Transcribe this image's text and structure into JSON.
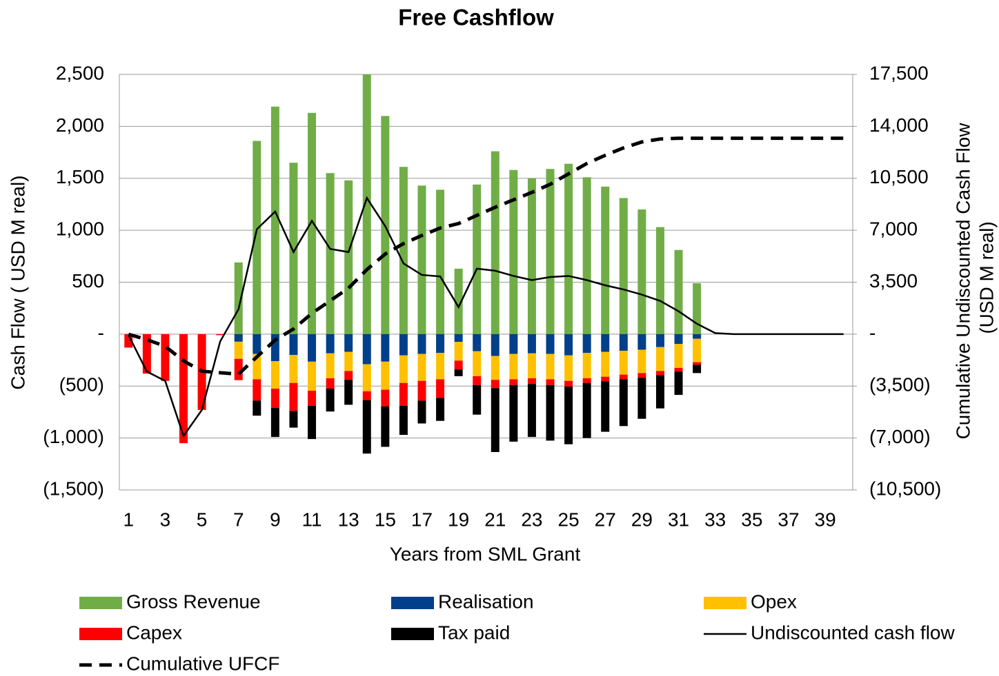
{
  "chart_data": {
    "type": "bar",
    "title": "Free Cashflow",
    "xlabel": "Years from SML Grant",
    "ylabel": "Cash Flow ( USD M real)",
    "y2label": [
      "Cumulative Undiscounted Cash Flow",
      "(USD M real)"
    ],
    "categories": [
      1,
      null,
      3,
      null,
      5,
      null,
      7,
      null,
      9,
      null,
      11,
      null,
      13,
      null,
      15,
      null,
      17,
      null,
      19,
      null,
      21,
      null,
      23,
      null,
      25,
      null,
      27,
      null,
      29,
      null,
      31,
      null,
      33,
      null,
      35,
      null,
      37,
      null,
      39,
      null
    ],
    "ylim": [
      -1500,
      2500
    ],
    "yticks": [
      -1500,
      -1000,
      -500,
      0,
      500,
      1000,
      1500,
      2000,
      2500
    ],
    "yticks_printed": [
      {
        "value": -1500,
        "label": "(1,500)"
      },
      {
        "value": -1000,
        "label": "(1,000)"
      },
      {
        "value": -500,
        "label": "(500)"
      },
      {
        "value": 0,
        "label": "-"
      },
      500,
      {
        "value": 1000,
        "label": "1,000"
      },
      {
        "value": 1500,
        "label": "1,500"
      },
      {
        "value": 2000,
        "label": "2,000"
      },
      {
        "value": 2500,
        "label": "2,500"
      }
    ],
    "y2lim": [
      -10500,
      17500
    ],
    "y2ticks": [
      {
        "value": -10500,
        "label": "(10,500)"
      },
      {
        "value": -7000,
        "label": "(7,000)"
      },
      {
        "value": -3500,
        "label": "(3,500)"
      },
      {
        "value": 0,
        "label": "-"
      },
      {
        "value": 3500,
        "label": "3,500"
      },
      {
        "value": 7000,
        "label": "7,000"
      },
      {
        "value": 10500,
        "label": "10,500"
      },
      {
        "value": 14000,
        "label": "14,000"
      },
      {
        "value": 17500,
        "label": "17,500"
      }
    ],
    "grid": true,
    "negative_tick_color": "#ff0000",
    "series": [
      {
        "name": "Gross Revenue",
        "color": "#70ad47",
        "kind": "bar",
        "values": [
          0,
          0,
          0,
          0,
          0,
          0,
          690,
          1860,
          2190,
          1650,
          2130,
          1550,
          1480,
          2500,
          2100,
          1610,
          1430,
          1390,
          630,
          1440,
          1760,
          1580,
          1500,
          1590,
          1640,
          1510,
          1420,
          1310,
          1200,
          1030,
          810,
          490,
          0,
          0,
          0,
          0,
          0,
          0,
          0,
          0
        ]
      },
      {
        "name": "Realisation",
        "color": "#003f8a",
        "kind": "bar",
        "values": [
          0,
          0,
          0,
          0,
          0,
          0,
          -73,
          -190,
          -260,
          -200,
          -265,
          -185,
          -170,
          -290,
          -265,
          -205,
          -190,
          -180,
          -75,
          -165,
          -210,
          -190,
          -185,
          -190,
          -205,
          -180,
          -170,
          -160,
          -150,
          -125,
          -95,
          -45,
          0,
          0,
          0,
          0,
          0,
          0,
          0,
          0
        ]
      },
      {
        "name": "Opex",
        "color": "#ffc000",
        "kind": "bar",
        "values": [
          0,
          0,
          0,
          0,
          0,
          0,
          -165,
          -245,
          -265,
          -270,
          -280,
          -240,
          -185,
          -260,
          -270,
          -265,
          -260,
          -255,
          -180,
          -240,
          -230,
          -245,
          -240,
          -245,
          -245,
          -245,
          -240,
          -230,
          -225,
          -230,
          -230,
          -225,
          0,
          0,
          0,
          0,
          0,
          0,
          0,
          0
        ]
      },
      {
        "name": "Capex",
        "color": "#ff0000",
        "kind": "bar",
        "values": [
          -130,
          -380,
          -450,
          -1050,
          -730,
          -10,
          -205,
          -205,
          -185,
          -270,
          -145,
          -100,
          -85,
          -85,
          -160,
          -220,
          -190,
          -180,
          -85,
          -85,
          -80,
          -55,
          -55,
          -55,
          -55,
          -45,
          -45,
          -45,
          -45,
          -40,
          -35,
          -25,
          0,
          0,
          0,
          0,
          0,
          0,
          0,
          0
        ]
      },
      {
        "name": "Tax paid",
        "color": "#000000",
        "kind": "bar",
        "values": [
          0,
          0,
          0,
          0,
          0,
          0,
          0,
          -145,
          -280,
          -160,
          -320,
          -220,
          -240,
          -515,
          -390,
          -280,
          -220,
          -220,
          -65,
          -285,
          -615,
          -545,
          -510,
          -535,
          -555,
          -530,
          -485,
          -450,
          -395,
          -320,
          -225,
          -80,
          0,
          0,
          0,
          0,
          0,
          0,
          0,
          0
        ]
      },
      {
        "name": "Undiscounted cash flow",
        "color": "#000000",
        "kind": "line",
        "values": [
          -10,
          -360,
          -450,
          -980,
          -730,
          -70,
          240,
          1010,
          1180,
          790,
          1090,
          820,
          790,
          1310,
          1040,
          680,
          570,
          555,
          260,
          630,
          610,
          560,
          520,
          550,
          560,
          520,
          470,
          430,
          380,
          320,
          220,
          100,
          10,
          0,
          0,
          0,
          0,
          0,
          0,
          0
        ]
      },
      {
        "name": "Cumulative UFCF",
        "color": "#000000",
        "kind": "line",
        "dash": true,
        "axis": "y2",
        "values": [
          -10,
          -370,
          -820,
          -1800,
          -2500,
          -2600,
          -2700,
          -1530,
          -400,
          350,
          1400,
          2250,
          3100,
          4350,
          5400,
          6100,
          6650,
          7150,
          7450,
          8000,
          8550,
          9050,
          9550,
          10100,
          10800,
          11500,
          12050,
          12550,
          12950,
          13150,
          13200,
          13200,
          13200,
          13200,
          13200,
          13200,
          13200,
          13200,
          13200,
          13200
        ]
      }
    ]
  }
}
